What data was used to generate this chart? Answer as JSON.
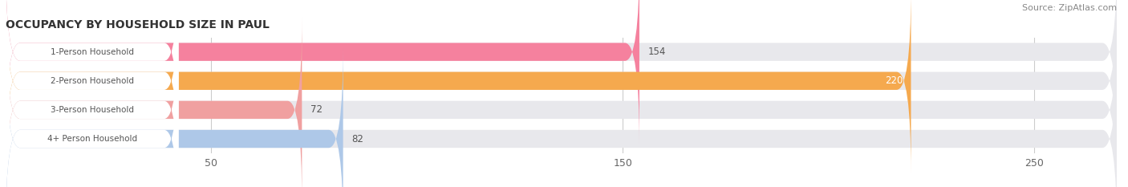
{
  "title": "OCCUPANCY BY HOUSEHOLD SIZE IN PAUL",
  "source": "Source: ZipAtlas.com",
  "categories": [
    "1-Person Household",
    "2-Person Household",
    "3-Person Household",
    "4+ Person Household"
  ],
  "values": [
    154,
    220,
    72,
    82
  ],
  "bar_colors": [
    "#f5819e",
    "#f5a94e",
    "#f0a0a0",
    "#aec8e8"
  ],
  "bar_bg_color": "#e8e8ec",
  "xlim": [
    0,
    270
  ],
  "xticks": [
    50,
    150,
    250
  ],
  "figsize": [
    14.06,
    2.33
  ],
  "dpi": 100,
  "bar_height": 0.62,
  "background_color": "#ffffff",
  "label_color_inside": "#ffffff",
  "label_color_outside": "#555555",
  "value_label_threshold": 200
}
